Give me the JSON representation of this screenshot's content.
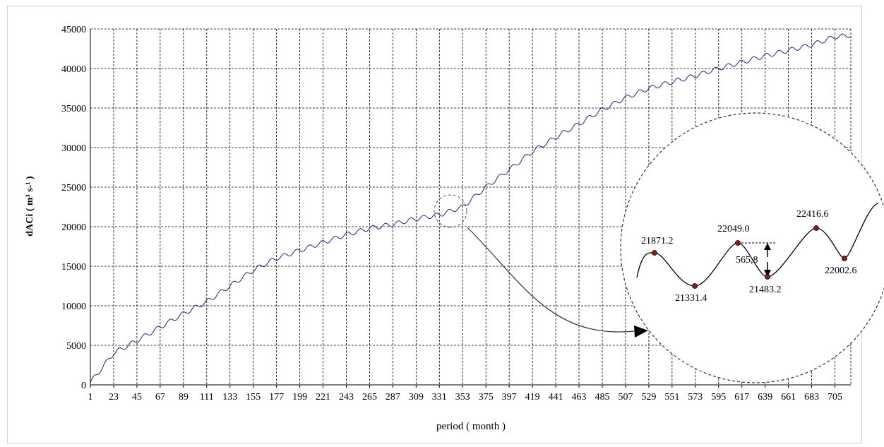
{
  "chart_data": {
    "type": "line",
    "ylabel": "dACi ( m³ s-¹ )",
    "xlabel": "period ( month )",
    "ylim": [
      0,
      45000
    ],
    "y_ticks": [
      "0",
      "5000",
      "10000",
      "15000",
      "20000",
      "25000",
      "30000",
      "35000",
      "40000",
      "45000"
    ],
    "x_ticks": [
      "1",
      "23",
      "45",
      "67",
      "89",
      "111",
      "133",
      "155",
      "177",
      "199",
      "221",
      "243",
      "265",
      "287",
      "309",
      "331",
      "353",
      "375",
      "397",
      "419",
      "441",
      "463",
      "485",
      "507",
      "529",
      "551",
      "573",
      "595",
      "617",
      "639",
      "661",
      "683",
      "705"
    ],
    "xlim": [
      1,
      720
    ],
    "grid": true,
    "series_color": "#1f1f8f",
    "trend_points": [
      [
        1,
        300
      ],
      [
        23,
        4000
      ],
      [
        45,
        5600
      ],
      [
        67,
        7300
      ],
      [
        89,
        9000
      ],
      [
        111,
        10500
      ],
      [
        133,
        12500
      ],
      [
        155,
        14500
      ],
      [
        177,
        16000
      ],
      [
        199,
        17000
      ],
      [
        221,
        18000
      ],
      [
        243,
        19000
      ],
      [
        265,
        19800
      ],
      [
        287,
        20300
      ],
      [
        309,
        21000
      ],
      [
        331,
        21500
      ],
      [
        353,
        22500
      ],
      [
        375,
        25000
      ],
      [
        397,
        27200
      ],
      [
        419,
        29500
      ],
      [
        441,
        31300
      ],
      [
        463,
        33000
      ],
      [
        485,
        34800
      ],
      [
        507,
        36300
      ],
      [
        529,
        37500
      ],
      [
        551,
        38300
      ],
      [
        573,
        39100
      ],
      [
        595,
        40000
      ],
      [
        617,
        40800
      ],
      [
        639,
        41600
      ],
      [
        661,
        42300
      ],
      [
        683,
        43000
      ],
      [
        705,
        44000
      ],
      [
        720,
        44200
      ]
    ],
    "seasonal_amplitude": 280,
    "inset": {
      "points": [
        {
          "label": "21871.2"
        },
        {
          "label": "21331.4"
        },
        {
          "label": "22049.0"
        },
        {
          "label": "21483.2"
        },
        {
          "label": "22416.6"
        },
        {
          "label": "22002.6"
        }
      ],
      "difference_label": "565,8"
    }
  }
}
